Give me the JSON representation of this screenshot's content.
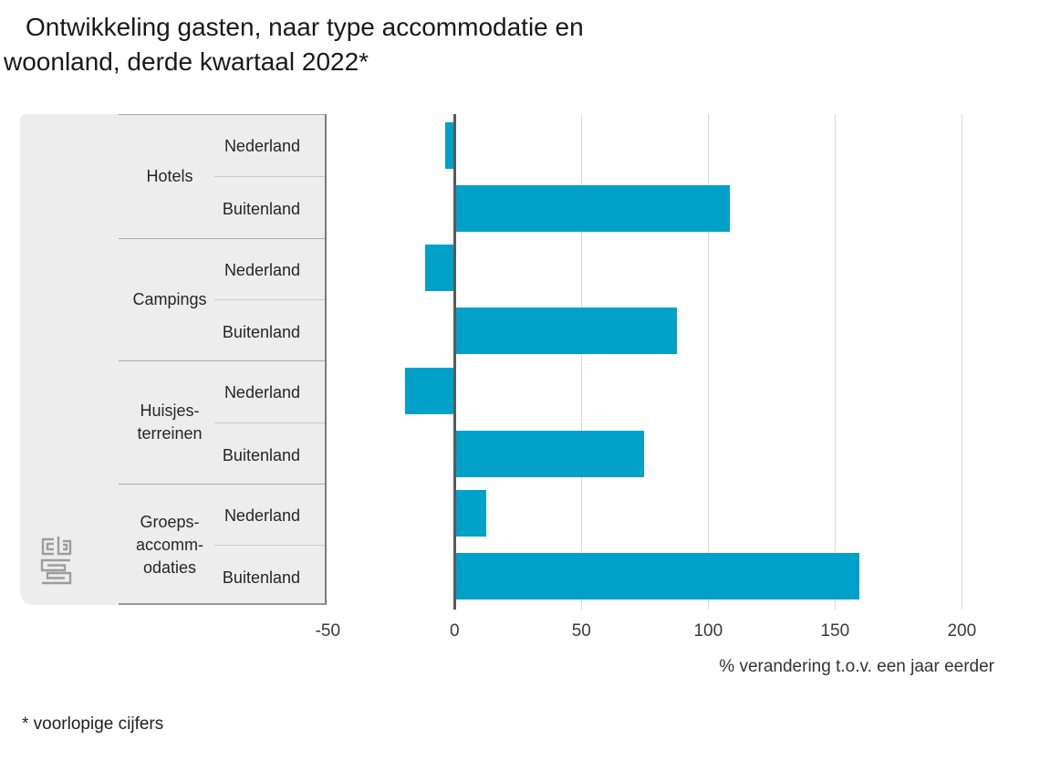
{
  "title": "Ontwikkeling gasten, naar type accommodatie en woonland, derde kwartaal 2022*",
  "title_lines": [
    "Ontwikkeling gasten, naar type accommodatie en",
    "woonland, derde kwartaal 2022*"
  ],
  "footnote": "* voorlopige cijfers",
  "logo_name": "cbs-logo",
  "chart_data": {
    "type": "bar",
    "orientation": "horizontal",
    "title": "Ontwikkeling gasten, naar type accommodatie en woonland, derde kwartaal 2022*",
    "xlabel": "% verandering t.o.v. een jaar eerder",
    "x_ticks": [
      -50,
      0,
      50,
      100,
      150,
      200
    ],
    "xlim": [
      -50,
      213
    ],
    "grid": true,
    "legend_position": "none",
    "bar_color": "#00a1c9",
    "categories": [
      "Hotels",
      "Campings",
      "Huisjesterreinen",
      "Groepsaccommodaties"
    ],
    "category_label_lines": [
      [
        "Hotels"
      ],
      [
        "Campings"
      ],
      [
        "Huisjes-",
        "terreinen"
      ],
      [
        "Groeps-",
        "accomm-",
        "odaties"
      ]
    ],
    "series": [
      {
        "name": "Nederland",
        "values": [
          -3,
          -11,
          -19,
          12
        ]
      },
      {
        "name": "Buitenland",
        "values": [
          108,
          87,
          74,
          159
        ]
      }
    ]
  }
}
